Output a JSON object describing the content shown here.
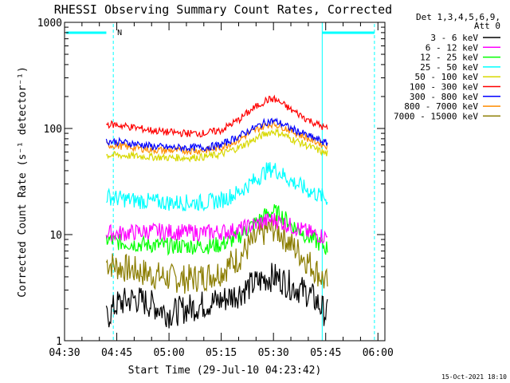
{
  "chart_data": {
    "type": "line",
    "title": "RHESSI Observing Summary Count Rates, Corrected",
    "xlabel": "Start Time (29-Jul-10 04:23:42)",
    "ylabel": "Corrected Count Rate (s⁻¹ detector⁻¹)",
    "yscale": "log",
    "ylim": [
      1,
      1000
    ],
    "xlim_minutes": [
      270,
      362
    ],
    "x_ticks": [
      {
        "label": "04:30",
        "minute": 270
      },
      {
        "label": "04:45",
        "minute": 285
      },
      {
        "label": "05:00",
        "minute": 300
      },
      {
        "label": "05:15",
        "minute": 315
      },
      {
        "label": "05:30",
        "minute": 330
      },
      {
        "label": "05:45",
        "minute": 345
      },
      {
        "label": "06:00",
        "minute": 360
      }
    ],
    "y_ticks": [
      {
        "label": "1",
        "value": 1
      },
      {
        "label": "10",
        "value": 10
      },
      {
        "label": "100",
        "value": 100
      },
      {
        "label": "1000",
        "value": 1000
      }
    ],
    "legend_header": [
      "Det 1,3,4,5,6,9,",
      "Att 0"
    ],
    "legend_position": "right",
    "night_marker": "N",
    "data_interval_minutes": [
      282,
      345.5
    ],
    "series": [
      {
        "name": "3 - 6 keV",
        "color": "#000000",
        "x": [
          282,
          285,
          290,
          295,
          300,
          305,
          310,
          315,
          320,
          325,
          328,
          330,
          332,
          335,
          340,
          343,
          345
        ],
        "y": [
          1.6,
          2.2,
          2.5,
          2.2,
          1.8,
          2.0,
          2.2,
          2.4,
          2.8,
          3.5,
          3.9,
          4.0,
          3.8,
          3.3,
          2.8,
          2.2,
          1.8
        ]
      },
      {
        "name": "6 - 12 keV",
        "color": "#ff00ff",
        "x": [
          282,
          285,
          290,
          295,
          300,
          305,
          310,
          315,
          320,
          325,
          328,
          330,
          332,
          335,
          340,
          345
        ],
        "y": [
          10.5,
          10.2,
          10.5,
          10.8,
          10.6,
          10.5,
          10.4,
          10.6,
          11.0,
          12.5,
          13.5,
          13.8,
          13.2,
          12.0,
          10.5,
          9.5
        ]
      },
      {
        "name": "12 - 25 keV",
        "color": "#00ff00",
        "x": [
          282,
          285,
          290,
          295,
          300,
          305,
          310,
          315,
          320,
          325,
          328,
          330,
          332,
          335,
          340,
          345
        ],
        "y": [
          9.0,
          8.5,
          8.2,
          8.0,
          7.8,
          7.8,
          7.8,
          8.0,
          9.5,
          13.0,
          15.5,
          16.5,
          15.5,
          12.5,
          9.5,
          7.5
        ]
      },
      {
        "name": "25 - 50 keV",
        "color": "#00ffff",
        "x": [
          282,
          285,
          290,
          295,
          300,
          305,
          310,
          315,
          320,
          325,
          328,
          330,
          332,
          335,
          340,
          345
        ],
        "y": [
          23,
          22,
          21,
          20.5,
          20,
          20,
          20,
          21,
          25,
          33,
          40,
          42,
          38,
          32,
          26,
          22
        ]
      },
      {
        "name": "50 - 100 keV",
        "color": "#d8d800",
        "x": [
          282,
          285,
          290,
          295,
          300,
          305,
          310,
          315,
          320,
          325,
          328,
          330,
          332,
          335,
          340,
          345
        ],
        "y": [
          56,
          56,
          55,
          54,
          53,
          53,
          54,
          57,
          66,
          80,
          90,
          94,
          90,
          80,
          68,
          58
        ]
      },
      {
        "name": "100 - 300 keV",
        "color": "#ff0000",
        "x": [
          282,
          285,
          290,
          295,
          300,
          305,
          310,
          315,
          320,
          325,
          328,
          330,
          332,
          335,
          340,
          345
        ],
        "y": [
          110,
          108,
          102,
          96,
          92,
          90,
          90,
          96,
          120,
          160,
          185,
          190,
          175,
          150,
          120,
          100
        ]
      },
      {
        "name": "300 - 800 keV",
        "color": "#0000ff",
        "x": [
          282,
          285,
          290,
          295,
          300,
          305,
          310,
          315,
          320,
          325,
          328,
          330,
          332,
          335,
          340,
          345
        ],
        "y": [
          76,
          75,
          72,
          68,
          66,
          66,
          66,
          70,
          84,
          103,
          115,
          118,
          112,
          100,
          85,
          73
        ]
      },
      {
        "name": "800 - 7000 keV",
        "color": "#ff8c00",
        "x": [
          282,
          285,
          290,
          295,
          300,
          305,
          310,
          315,
          320,
          325,
          328,
          330,
          332,
          335,
          340,
          345
        ],
        "y": [
          70,
          69,
          66,
          63,
          62,
          62,
          62,
          66,
          78,
          97,
          108,
          111,
          106,
          95,
          80,
          69
        ]
      },
      {
        "name": "7000 - 15000 keV",
        "color": "#8b7d00",
        "x": [
          282,
          285,
          290,
          295,
          300,
          305,
          310,
          315,
          320,
          325,
          328,
          330,
          332,
          335,
          340,
          345
        ],
        "y": [
          5.5,
          5.0,
          4.6,
          4.2,
          3.9,
          3.8,
          4.0,
          4.5,
          6.0,
          9.0,
          11.0,
          11.5,
          10.5,
          8.0,
          5.5,
          3.5
        ]
      }
    ]
  },
  "footer": {
    "date": "15-Oct-2021 18:10"
  }
}
